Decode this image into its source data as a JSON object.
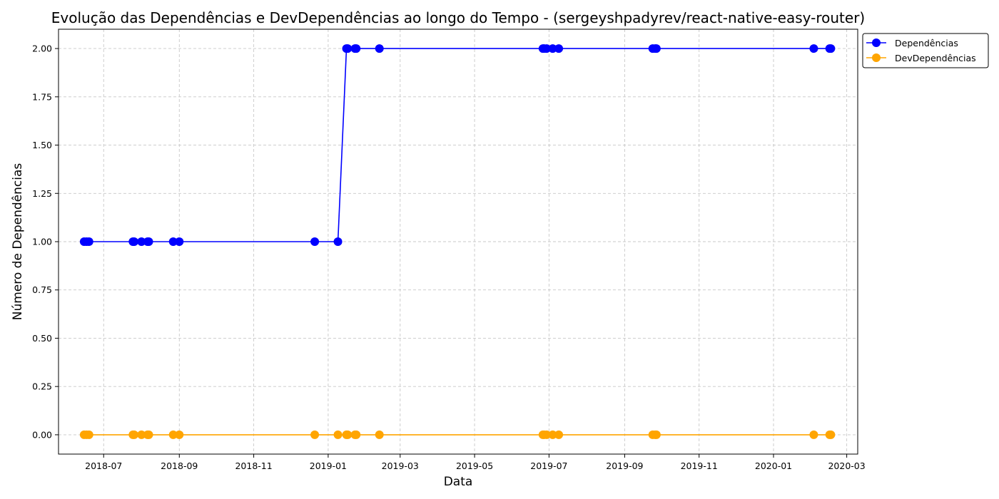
{
  "chart_data": {
    "type": "line",
    "title": "Evolução das Dependências e DevDependências ao longo do Tempo - (sergeyshpadyrev/react-native-easy-router)",
    "xlabel": "Data",
    "ylabel": "Número de Dependências",
    "x_scale": "date",
    "xlim": [
      "2018-05-25",
      "2020-03-10"
    ],
    "ylim": [
      -0.1,
      2.1
    ],
    "x_ticks": [
      {
        "date": "2018-07-01",
        "label": "2018-07"
      },
      {
        "date": "2018-09-01",
        "label": "2018-09"
      },
      {
        "date": "2018-11-01",
        "label": "2018-11"
      },
      {
        "date": "2019-01-01",
        "label": "2019-01"
      },
      {
        "date": "2019-03-01",
        "label": "2019-03"
      },
      {
        "date": "2019-05-01",
        "label": "2019-05"
      },
      {
        "date": "2019-07-01",
        "label": "2019-07"
      },
      {
        "date": "2019-09-01",
        "label": "2019-09"
      },
      {
        "date": "2019-11-01",
        "label": "2019-11"
      },
      {
        "date": "2020-01-01",
        "label": "2020-01"
      },
      {
        "date": "2020-03-01",
        "label": "2020-03"
      }
    ],
    "y_ticks": [
      {
        "value": 0.0,
        "label": "0.00"
      },
      {
        "value": 0.25,
        "label": "0.25"
      },
      {
        "value": 0.5,
        "label": "0.50"
      },
      {
        "value": 0.75,
        "label": "0.75"
      },
      {
        "value": 1.0,
        "label": "1.00"
      },
      {
        "value": 1.25,
        "label": "1.25"
      },
      {
        "value": 1.5,
        "label": "1.50"
      },
      {
        "value": 1.75,
        "label": "1.75"
      },
      {
        "value": 2.0,
        "label": "2.00"
      }
    ],
    "grid": true,
    "legend_position": "outside-top-right",
    "x": [
      "2018-06-15",
      "2018-06-17",
      "2018-06-19",
      "2018-07-25",
      "2018-07-26",
      "2018-08-01",
      "2018-08-06",
      "2018-08-07",
      "2018-08-27",
      "2018-09-01",
      "2018-12-21",
      "2019-01-09",
      "2019-01-16",
      "2019-01-17",
      "2019-01-23",
      "2019-01-24",
      "2019-02-12",
      "2019-06-26",
      "2019-06-27",
      "2019-06-29",
      "2019-07-04",
      "2019-07-09",
      "2019-09-24",
      "2019-09-26",
      "2019-09-27",
      "2020-02-03",
      "2020-02-16",
      "2020-02-17"
    ],
    "series": [
      {
        "name": "Dependências",
        "color": "#0000ff",
        "values": [
          1,
          1,
          1,
          1,
          1,
          1,
          1,
          1,
          1,
          1,
          1,
          1,
          2,
          2,
          2,
          2,
          2,
          2,
          2,
          2,
          2,
          2,
          2,
          2,
          2,
          2,
          2,
          2
        ]
      },
      {
        "name": "DevDependências",
        "color": "#ffa500",
        "values": [
          0,
          0,
          0,
          0,
          0,
          0,
          0,
          0,
          0,
          0,
          0,
          0,
          0,
          0,
          0,
          0,
          0,
          0,
          0,
          0,
          0,
          0,
          0,
          0,
          0,
          0,
          0,
          0
        ]
      }
    ]
  }
}
